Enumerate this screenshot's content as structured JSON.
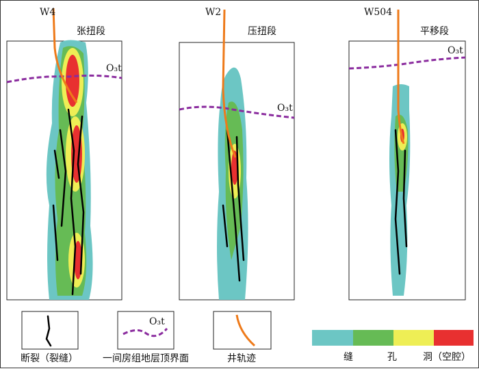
{
  "wells": [
    {
      "name": "W4",
      "segment": "张扭段",
      "horizon": "O₃t"
    },
    {
      "name": "W2",
      "segment": "压扭段",
      "horizon": "O₃t"
    },
    {
      "name": "W504",
      "segment": "平移段",
      "horizon": "O₃t"
    }
  ],
  "legend": {
    "fracture": "断裂（裂缝）",
    "horizon_label": "O₃t",
    "horizon": "一间房组地层顶界面",
    "trajectory": "井轨迹"
  },
  "colorbar": {
    "labels": [
      "缝",
      "孔",
      "洞（空腔）"
    ]
  }
}
